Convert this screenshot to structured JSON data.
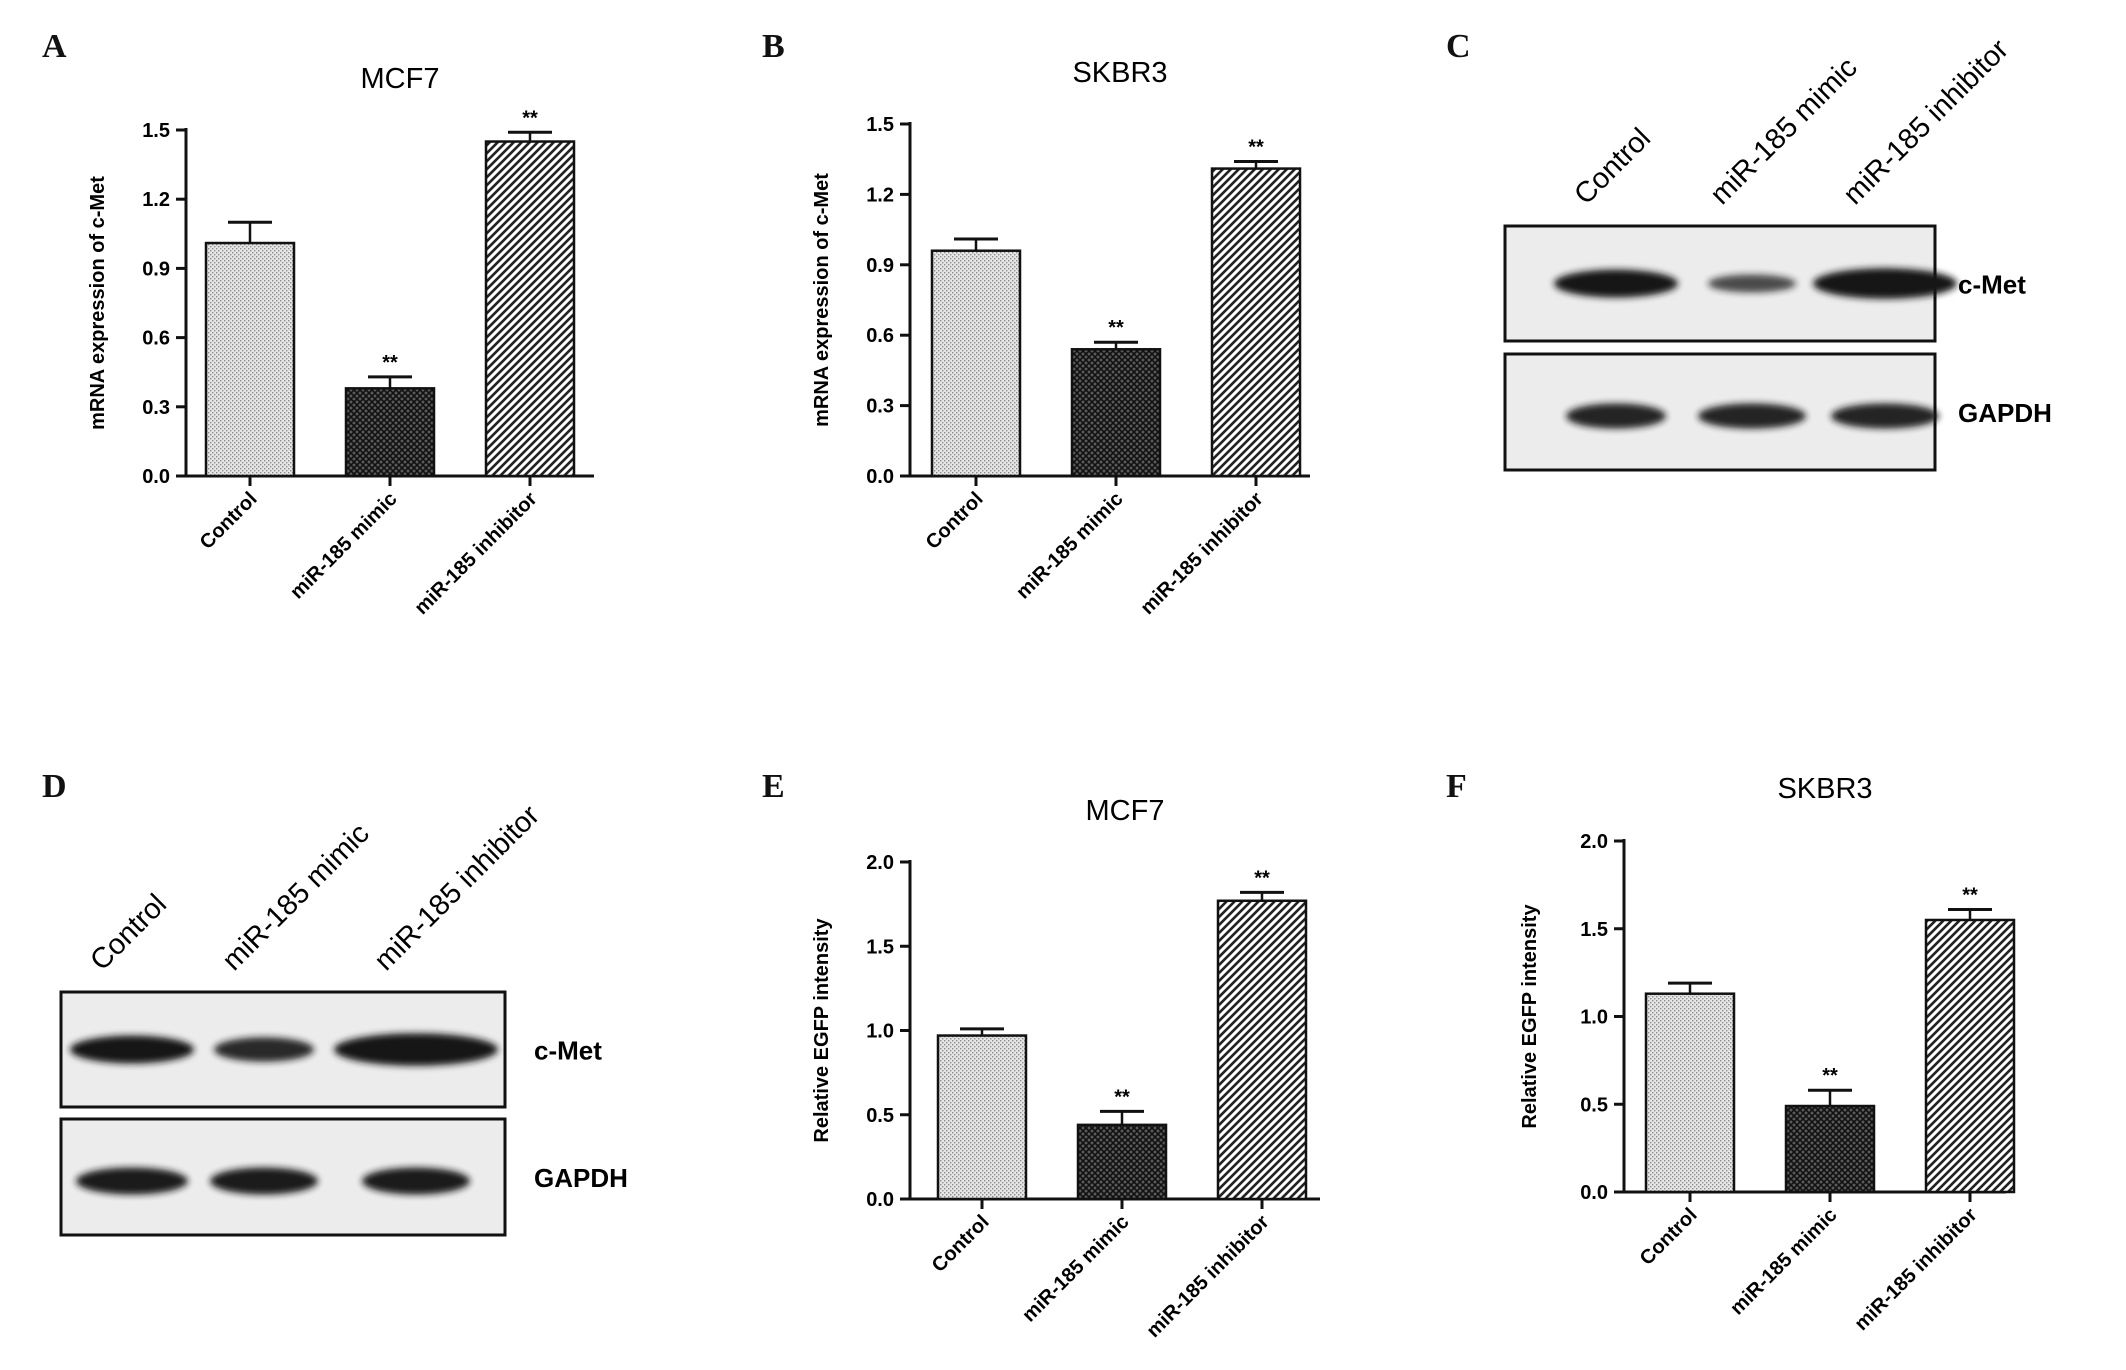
{
  "panel_letters": [
    "A",
    "B",
    "C",
    "D",
    "E",
    "F"
  ],
  "chart_data": [
    {
      "type": "bar",
      "title": "MCF7",
      "ylabel": "mRNA expression of c-Met",
      "categories": [
        "Control",
        "miR-185 mimic",
        "miR-185 inhibitor"
      ],
      "values": [
        1.01,
        0.38,
        1.45
      ],
      "errors": [
        0.09,
        0.05,
        0.04
      ],
      "significance": [
        "",
        "**",
        "**"
      ],
      "ylim": [
        0,
        1.5
      ],
      "yticks": [
        "0.0",
        "0.3",
        "0.6",
        "0.9",
        "1.2",
        "1.5"
      ]
    },
    {
      "type": "bar",
      "title": "SKBR3",
      "ylabel": "mRNA expression of c-Met",
      "categories": [
        "Control",
        "miR-185 mimic",
        "miR-185 inhibitor"
      ],
      "values": [
        0.96,
        0.54,
        1.31
      ],
      "errors": [
        0.05,
        0.03,
        0.03
      ],
      "significance": [
        "",
        "**",
        "**"
      ],
      "ylim": [
        0,
        1.5
      ],
      "yticks": [
        "0.0",
        "0.3",
        "0.6",
        "0.9",
        "1.2",
        "1.5"
      ]
    },
    {
      "type": "bar",
      "title": "MCF7",
      "ylabel": "Relative EGFP intensity",
      "categories": [
        "Control",
        "miR-185 mimic",
        "miR-185 inhibitor"
      ],
      "values": [
        0.97,
        0.44,
        1.77
      ],
      "errors": [
        0.04,
        0.08,
        0.05
      ],
      "significance": [
        "",
        "**",
        "**"
      ],
      "ylim": [
        0,
        2.0
      ],
      "yticks": [
        "0.0",
        "0.5",
        "1.0",
        "1.5",
        "2.0"
      ]
    },
    {
      "type": "bar",
      "title": "SKBR3",
      "ylabel": "Relative EGFP intensity",
      "categories": [
        "Control",
        "miR-185 mimic",
        "miR-185 inhibitor"
      ],
      "values": [
        1.13,
        0.49,
        1.55
      ],
      "errors": [
        0.06,
        0.09,
        0.06
      ],
      "significance": [
        "",
        "**",
        "**"
      ],
      "ylim": [
        0,
        2.0
      ],
      "yticks": [
        "0.0",
        "0.5",
        "1.0",
        "1.5",
        "2.0"
      ]
    }
  ],
  "blots": [
    {
      "lanes": [
        "Control",
        "miR-185 mimic",
        "miR-185 inhibitor"
      ],
      "rows": [
        {
          "label": "c-Met",
          "intensity": [
            1.0,
            0.45,
            1.15
          ]
        },
        {
          "label": "GAPDH",
          "intensity": [
            0.85,
            0.85,
            0.85
          ]
        }
      ]
    },
    {
      "lanes": [
        "Control",
        "miR-185 mimic",
        "miR-185 inhibitor"
      ],
      "rows": [
        {
          "label": "c-Met",
          "intensity": [
            1.0,
            0.8,
            1.25
          ]
        },
        {
          "label": "GAPDH",
          "intensity": [
            0.95,
            0.95,
            0.95
          ]
        }
      ]
    }
  ],
  "colors": {
    "ink": "#111111",
    "control_fill": "#d8d8d8",
    "mimic_fill": "#3a3a3a",
    "inhibitor_fill": "#555555",
    "blot_bg": "#e9e9e9",
    "band": "#141414"
  }
}
